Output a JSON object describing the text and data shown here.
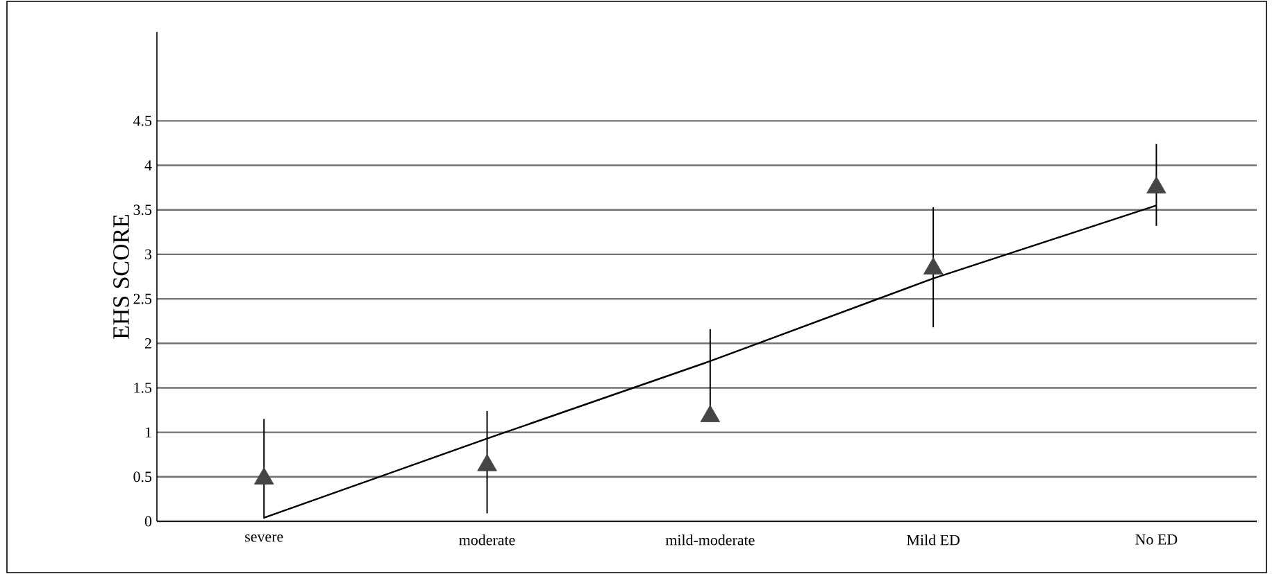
{
  "chart_data": {
    "type": "scatter",
    "ylabel": "EHS SCORE",
    "categories": [
      "severe",
      "moderate",
      "mild-moderate",
      "Mild ED",
      "No ED"
    ],
    "series": [
      {
        "color": "#454545",
        "marker": "triangle",
        "values": [
          0.48,
          0.63,
          1.18,
          2.84,
          3.75
        ],
        "errors": [
          [
            0.03,
            1.15
          ],
          [
            0.09,
            1.24
          ],
          [
            1.18,
            2.16
          ],
          [
            2.18,
            3.53
          ],
          [
            3.32,
            4.24
          ]
        ]
      },
      {
        "type": "line",
        "color": "#000000",
        "marker": "none",
        "line_style": "solid",
        "values": [
          0.04,
          0.93,
          1.8,
          2.73,
          3.55
        ]
      }
    ],
    "ylim": [
      0,
      5.5
    ],
    "yticks": [
      0,
      0.5,
      1,
      1.5,
      2,
      2.5,
      3,
      3.5,
      4,
      4.5
    ],
    "grid": "y"
  }
}
